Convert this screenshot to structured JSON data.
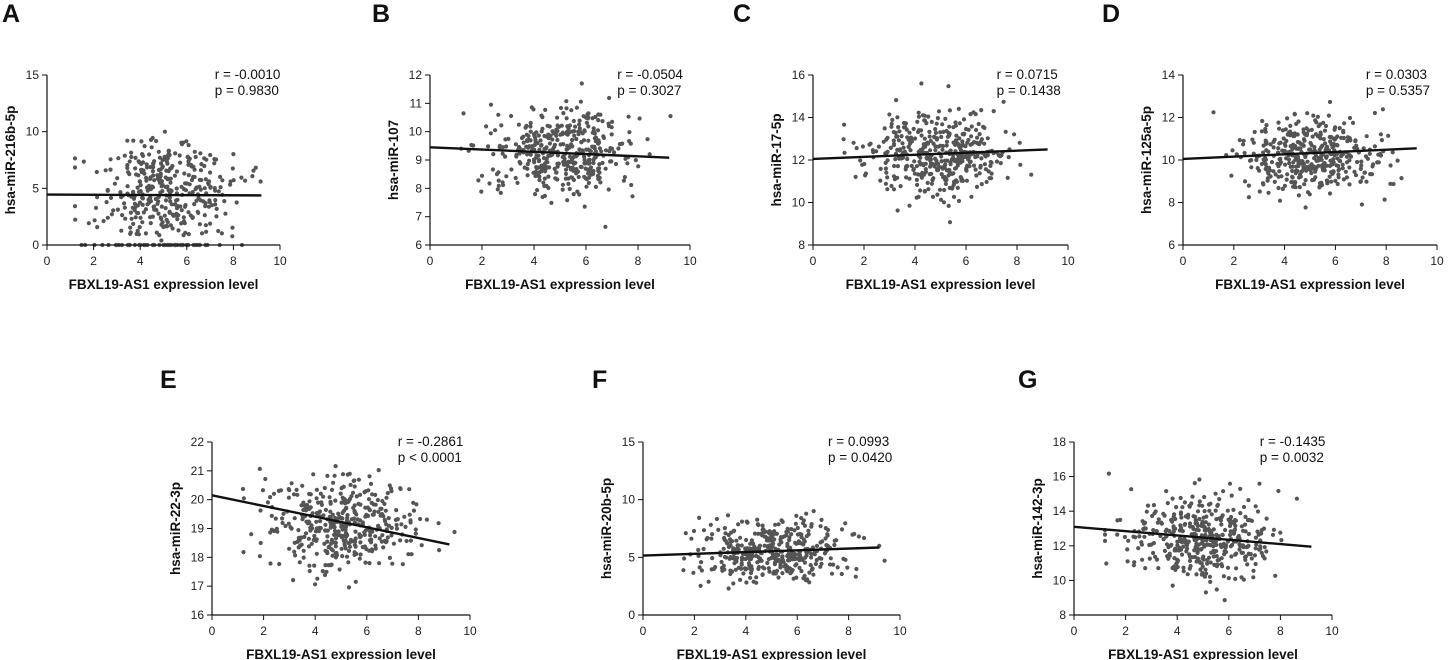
{
  "figure": {
    "panel_count": 7,
    "point_color": "#555555",
    "line_color": "#111111",
    "axis_color": "#111111"
  },
  "chart_data": [
    {
      "type": "scatter",
      "label": "A",
      "title": "",
      "xlabel": "FBXL19-AS1 expression level",
      "ylabel": "hsa-miR-216b-5p",
      "xlim": [
        0,
        10
      ],
      "ylim": [
        0,
        15
      ],
      "xticks": [
        "0",
        "2",
        "4",
        "6",
        "8",
        "10"
      ],
      "yticks": [
        "0",
        "5",
        "10",
        "15"
      ],
      "n_points": 420,
      "x_center": 5.0,
      "x_spread": 1.4,
      "y_center": 5.0,
      "y_spread": 3.5,
      "y_distribution": "uniform",
      "zero_inflated": true,
      "regression": {
        "x": [
          0,
          9.2
        ],
        "y": [
          4.45,
          4.38
        ]
      },
      "annotation": [
        "r = -0.0010",
        "p = 0.9830"
      ]
    },
    {
      "type": "scatter",
      "label": "B",
      "title": "",
      "xlabel": "FBXL19-AS1 expression level",
      "ylabel": "hsa-miR-107",
      "xlim": [
        0,
        10
      ],
      "ylim": [
        6,
        12
      ],
      "xticks": [
        "0",
        "2",
        "4",
        "6",
        "8",
        "10"
      ],
      "yticks": [
        "6",
        "7",
        "8",
        "9",
        "10",
        "11",
        "12"
      ],
      "n_points": 420,
      "x_center": 5.0,
      "x_spread": 1.4,
      "y_center": 9.3,
      "y_spread": 0.75,
      "y_distribution": "normal",
      "zero_inflated": false,
      "regression": {
        "x": [
          0,
          9.2
        ],
        "y": [
          9.45,
          9.08
        ]
      },
      "annotation": [
        "r = -0.0504",
        "p = 0.3027"
      ]
    },
    {
      "type": "scatter",
      "label": "C",
      "title": "",
      "xlabel": "FBXL19-AS1 expression level",
      "ylabel": "hsa-miR-17-5p",
      "xlim": [
        0,
        10
      ],
      "ylim": [
        8,
        16
      ],
      "xticks": [
        "0",
        "2",
        "4",
        "6",
        "8",
        "10"
      ],
      "yticks": [
        "8",
        "10",
        "12",
        "14",
        "16"
      ],
      "n_points": 420,
      "x_center": 5.0,
      "x_spread": 1.4,
      "y_center": 12.3,
      "y_spread": 1.0,
      "y_distribution": "normal",
      "zero_inflated": false,
      "regression": {
        "x": [
          0,
          9.2
        ],
        "y": [
          12.05,
          12.5
        ]
      },
      "annotation": [
        "r = 0.0715",
        "p = 0.1438"
      ]
    },
    {
      "type": "scatter",
      "label": "D",
      "title": "",
      "xlabel": "FBXL19-AS1 expression level",
      "ylabel": "hsa-miR-125a-5p",
      "xlim": [
        0,
        10
      ],
      "ylim": [
        6,
        14
      ],
      "xticks": [
        "0",
        "2",
        "4",
        "6",
        "8",
        "10"
      ],
      "yticks": [
        "6",
        "8",
        "10",
        "12",
        "14"
      ],
      "n_points": 420,
      "x_center": 5.0,
      "x_spread": 1.4,
      "y_center": 10.2,
      "y_spread": 0.95,
      "y_distribution": "normal",
      "zero_inflated": false,
      "regression": {
        "x": [
          0,
          9.2
        ],
        "y": [
          10.05,
          10.55
        ]
      },
      "annotation": [
        "r = 0.0303",
        "p = 0.5357"
      ]
    },
    {
      "type": "scatter",
      "label": "E",
      "title": "",
      "xlabel": "FBXL19-AS1 expression level",
      "ylabel": "hsa-miR-22-3p",
      "xlim": [
        0,
        10
      ],
      "ylim": [
        16,
        22
      ],
      "xticks": [
        "0",
        "2",
        "4",
        "6",
        "8",
        "10"
      ],
      "yticks": [
        "16",
        "17",
        "18",
        "19",
        "20",
        "21",
        "22"
      ],
      "n_points": 420,
      "x_center": 5.0,
      "x_spread": 1.4,
      "y_center": 19.2,
      "y_spread": 0.8,
      "y_distribution": "normal",
      "zero_inflated": false,
      "regression": {
        "x": [
          0,
          9.2
        ],
        "y": [
          20.15,
          18.45
        ]
      },
      "annotation": [
        "r = -0.2861",
        "p < 0.0001"
      ]
    },
    {
      "type": "scatter",
      "label": "F",
      "title": "",
      "xlabel": "FBXL19-AS1 expression level",
      "ylabel": "hsa-miR-20b-5p",
      "xlim": [
        0,
        10
      ],
      "ylim": [
        0,
        15
      ],
      "xticks": [
        "0",
        "2",
        "4",
        "6",
        "8",
        "10"
      ],
      "yticks": [
        "0",
        "5",
        "10",
        "15"
      ],
      "n_points": 420,
      "x_center": 5.0,
      "x_spread": 1.4,
      "y_center": 5.5,
      "y_spread": 1.4,
      "y_distribution": "normal",
      "zero_inflated": false,
      "regression": {
        "x": [
          0,
          9.2
        ],
        "y": [
          5.15,
          5.85
        ]
      },
      "annotation": [
        "r = 0.0993",
        "p = 0.0420"
      ]
    },
    {
      "type": "scatter",
      "label": "G",
      "title": "",
      "xlabel": "FBXL19-AS1 expression level",
      "ylabel": "hsa-miR-142-3p",
      "xlim": [
        0,
        10
      ],
      "ylim": [
        8,
        18
      ],
      "xticks": [
        "0",
        "2",
        "4",
        "6",
        "8",
        "10"
      ],
      "yticks": [
        "8",
        "10",
        "12",
        "14",
        "16",
        "18"
      ],
      "n_points": 420,
      "x_center": 5.0,
      "x_spread": 1.4,
      "y_center": 12.5,
      "y_spread": 1.2,
      "y_distribution": "normal",
      "zero_inflated": false,
      "regression": {
        "x": [
          0,
          9.2
        ],
        "y": [
          13.1,
          11.95
        ]
      },
      "annotation": [
        "r = -0.1435",
        "p = 0.0032"
      ]
    }
  ]
}
